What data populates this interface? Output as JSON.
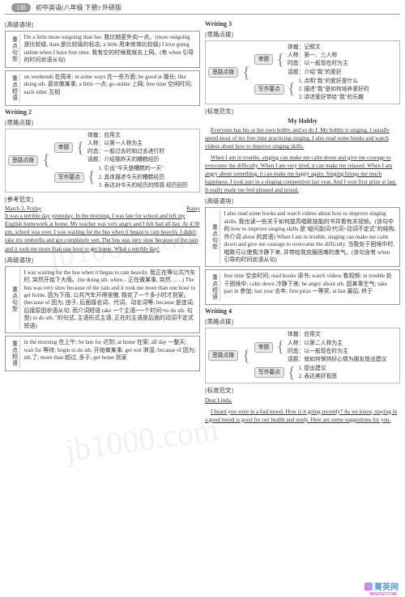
{
  "header": {
    "page_num": "138",
    "title": "初中英语(八年级 下册)·外研版"
  },
  "left": {
    "sect1_label": "[高级语块]",
    "box1": {
      "row_label": "重点句型",
      "text": "I'm a little more outgoing than her. 我比她更外向一点。(more outgoing 是比较级, than 是比较级的标志; a little 用来修饰比较级)\nI love going online when I have free time. 我有空的时候我就去上网。(有 when 引导的时间状语从句)"
    },
    "box1b": {
      "row_label": "重点短语",
      "text": "on weekends 在周末; in some ways 在一些方面; be good at 擅长; like doing sth. 喜欢做某事; a little 一点; go online 上网; free time 空闲时间; each other 互相"
    },
    "writing2": "Writing 2",
    "sect2_label": "[思路点拨]",
    "mm2": {
      "root": "思路点拨",
      "a_label": "审题",
      "a_items": [
        "体裁：应用文",
        "人称：以第一人称为主",
        "时态：一般过去时和过去进行时",
        "话题：介绍我昨天的糟糕经历"
      ],
      "b_label": "写作要点",
      "b_items": [
        "1. 引出\"今天是糟糕的一天\"",
        "2. 具体描述今天的糟糕经历",
        "3. 表达对今天的经历的情感  经历回历"
      ]
    },
    "sect3_label": "[参考范文]",
    "date_left": "March 3, Friday",
    "date_right": "Rainy",
    "essay2": "It was a terrible day yesterday. In the morning, I was late for school and left my English homework at home. My teacher was very angry and I felt bad all day. At 4:30 pm, school was over. I was waiting for the bus when it began to rain heavily. I didn't take my umbrella and got completely wet. The bus was very slow because of the rain and it took me more than one hour to get home. What a terrible day!",
    "sect4_label": "[高级语块]",
    "box4a": {
      "row_label": "重点句型",
      "text": "I was waiting for the bus when it began to rain heavily. 我正在等公共汽车时, 突然开始下大雨。(be doing sth. when... 正在做某事, 突然……)\nThe bus was very slow because of the rain and it took me more than one hour to get home. 因为下雨, 公共汽车开得很慢, 我花了一个多小时才到家。(because of 因为, 由于, 后面接名词、代词、动名词等; because 是连词, 后接原因状语从句; 而介词短语 take 一个主语+一个时间+to do sth. 句型)\nto do sth. \"的句式, 主语形式主语, 正在的主语是后面的动词不定式短语)"
    },
    "box4b": {
      "row_label": "重点短语",
      "text": "in the morning 在上午; be late for 迟到; at home 在家; all day 一整天; wait for 等待; begin to do sth. 开始做某事; get wet 淋湿; because of 因为; sth.了; more than 超过, 多于; get home 到家"
    }
  },
  "right": {
    "writing3": "Writing 3",
    "sect1_label": "[思路点拨]",
    "mm3": {
      "root": "思路点拨",
      "a_label": "审题",
      "a_items": [
        "体裁：记叙文",
        "人称：第一、三人称",
        "时态：以一般现在时为主",
        "话题：介绍\"我\"的爱好"
      ],
      "b_label": "写作要点",
      "b_items": [
        "1. 点明\"我\"的爱好是什么",
        "2. 描述\"我\"是如何培养爱好的",
        "3. 讲述爱好带给\"我\"的乐趣"
      ]
    },
    "sect2_label": "[标准范文]",
    "essay3_title": "My Hobby",
    "essay3_p1": "Everyone has his or her own hobby and so do I. My hobby is singing. I usually spend most of my free time practicing singing. I also read some books and watch videos about how to improve singing skills.",
    "essay3_p2": "When I am in trouble, singing can make me calm down and give me courage to overcome the difficulty. When I am very tired, it can make me relaxed. When I am angry about something, it can make me happy again. Singing brings me much happiness. I took part in a singing competition last year. And I won first prize at last. It really made me feel pleased and proud.",
    "sect3_label": "[高级语块]",
    "box3a": {
      "row_label": "重点句型",
      "text": "I also read some books and watch videos about how to improve singing skills. 我也读一些关于如何提高唱歌技能的书并看有关视频。(该句中的 how to improve singing skills 是\"疑问副词/代词+动词不定式\"的结构, 作介词 about 的宾语)\nWhen I am in trouble, singing can make me calm down and give me courage to overcome the difficulty. 当我处于困境中时, 唱歌可以使我冷静下来, 并带给我克服困难的勇气。(该句含有 when 引导的时间状语从句)"
    },
    "box3b": {
      "row_label": "重点短语",
      "text": "free time 空余时间; read books 读书; watch videos 看视频; in trouble 处于困境中; calm down 冷静下来; be angry about sth. 因某事生气; take part in 参加; last year 去年; first prize 一等奖; at last 最后, 终于"
    },
    "writing4": "Writing 4",
    "sect4_label": "[思路点拨]",
    "mm4": {
      "root": "思路点拨",
      "a_label": "审题",
      "a_items": [
        "体裁：应用文",
        "人称：以第二人称为主",
        "时态：以一般现在时为主",
        "话题：就如何保持好心情为朋友提出建议"
      ],
      "b_label": "写作要点",
      "b_items": [
        "1. 提出建议",
        "2. 表达美好祝愿"
      ]
    },
    "sect5_label": "[标准范文]",
    "essay4_greet": "Dear Linda,",
    "essay4_p1": "I heard you were in a bad mood. How is it going recently? As we know, staying in a good mood is good for our health and study. Here are some suggestions for you."
  },
  "footer": {
    "brand": "菁英网",
    "url": "MXEW.COM"
  }
}
